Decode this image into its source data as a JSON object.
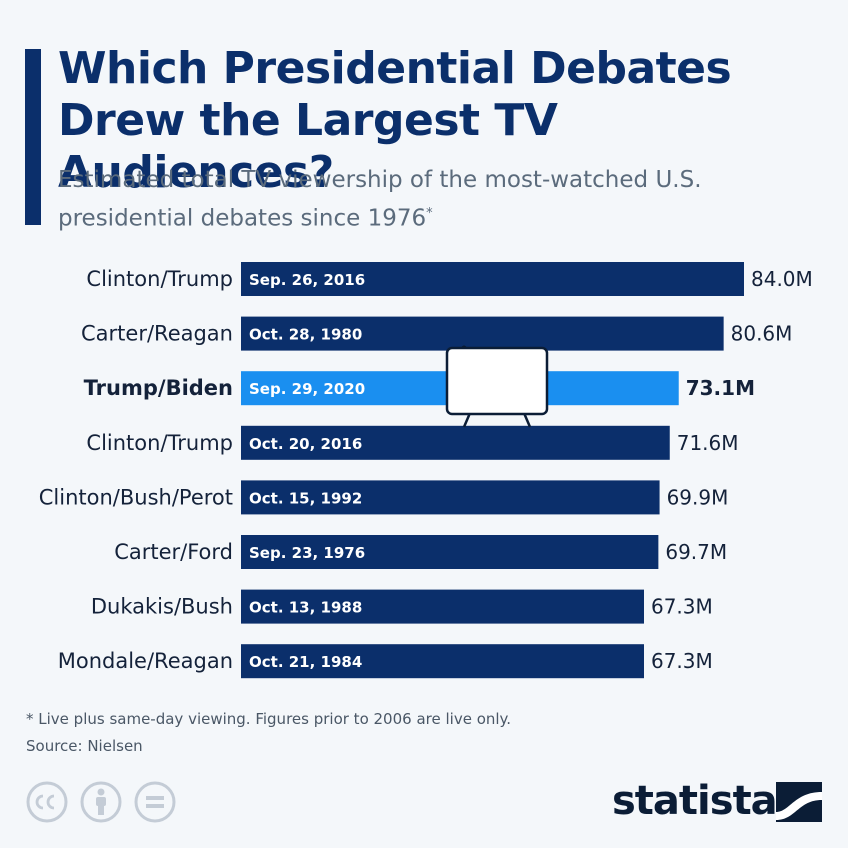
{
  "header": {
    "title": "Which Presidential Debates Drew the Largest TV Audiences?",
    "subtitle": "Estimated total TV viewership of the most-watched U.S. presidential debates since 1976",
    "subtitle_mark": "*"
  },
  "footer": {
    "note": "* Live plus same-day viewing. Figures prior to 2006 are live only.",
    "source": "Source: Nielsen",
    "brand": "statista"
  },
  "icons": {
    "cc": "creative-commons-icon",
    "by": "attribution-icon",
    "nd": "no-derivatives-icon",
    "tv": "television-icon",
    "logo": "statista-logo-icon"
  },
  "colors": {
    "primary": "#0b2f6b",
    "highlight": "#1a8ff0",
    "background": "#f4f7fa"
  },
  "chart_data": {
    "type": "bar",
    "orientation": "horizontal",
    "categories": [
      "Clinton/Trump",
      "Carter/Reagan",
      "Trump/Biden",
      "Clinton/Trump",
      "Clinton/Bush/Perot",
      "Carter/Ford",
      "Dukakis/Bush",
      "Mondale/Reagan"
    ],
    "dates": [
      "Sep. 26, 2016",
      "Oct. 28, 1980",
      "Sep. 29, 2020",
      "Oct. 20, 2016",
      "Oct. 15, 1992",
      "Sep. 23, 1976",
      "Oct. 13, 1988",
      "Oct. 21, 1984"
    ],
    "values": [
      84.0,
      80.6,
      73.1,
      71.6,
      69.9,
      69.7,
      67.3,
      67.3
    ],
    "value_labels": [
      "84.0M",
      "80.6M",
      "73.1M",
      "71.6M",
      "69.9M",
      "69.7M",
      "67.3M",
      "67.3M"
    ],
    "highlighted_index": 2,
    "unit": "M",
    "xlim": [
      0,
      84.0
    ]
  }
}
